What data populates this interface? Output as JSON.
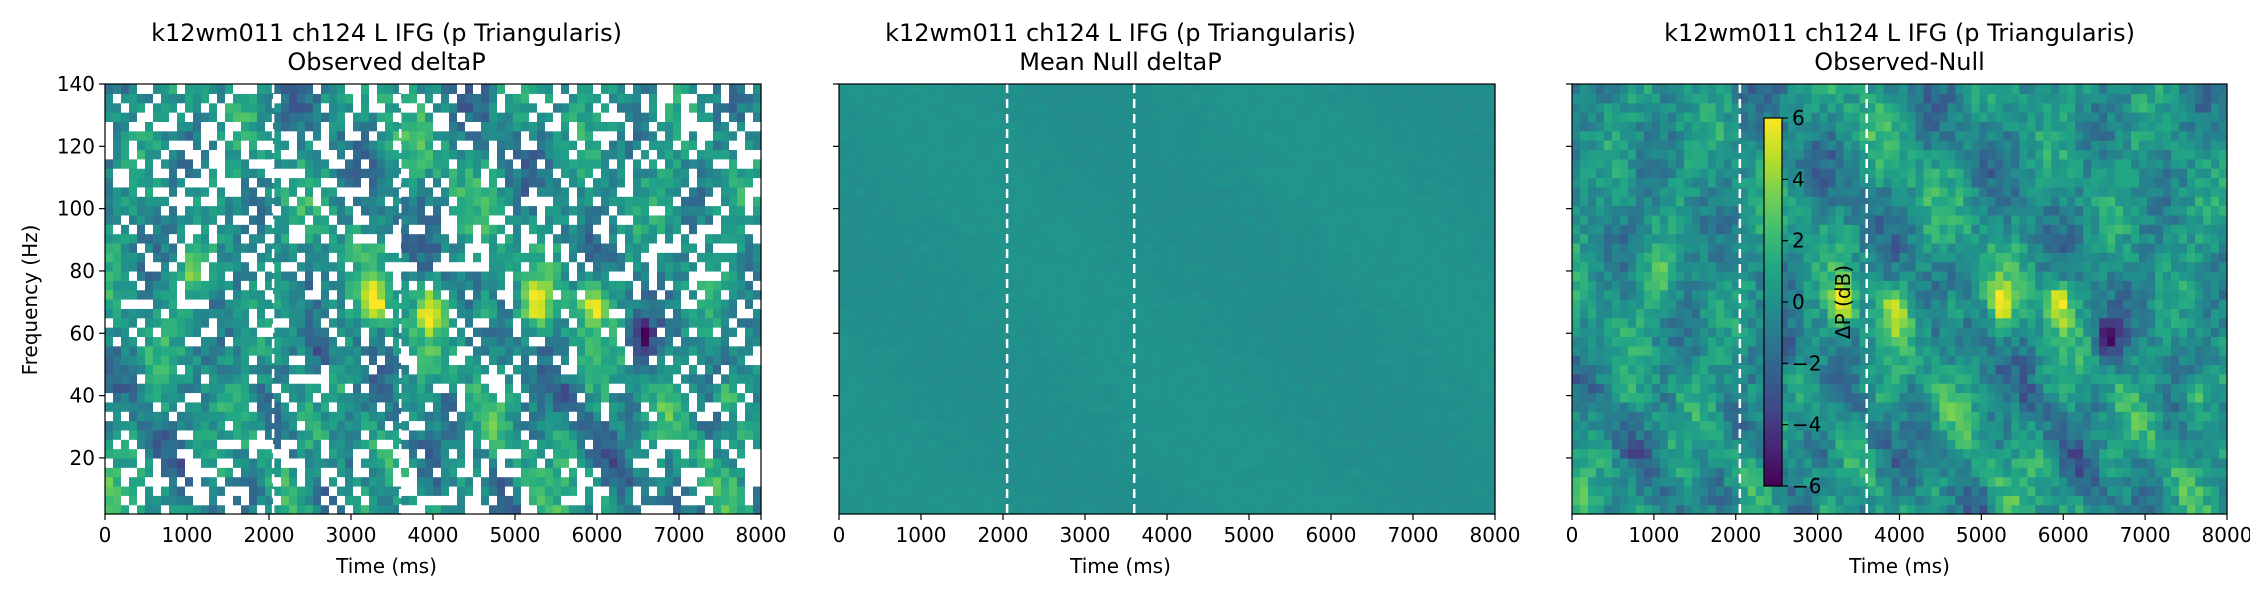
{
  "chart_data": [
    {
      "type": "heatmap",
      "title": [
        "k12wm011 ch124 L IFG (p Triangularis)",
        "Observed deltaP"
      ],
      "xlabel": "Time (ms)",
      "ylabel": "Frequency (Hz)",
      "xlim": [
        0,
        8000
      ],
      "ylim": [
        2,
        140
      ],
      "xticks": [
        0,
        1000,
        2000,
        3000,
        4000,
        5000,
        6000,
        7000,
        8000
      ],
      "yticks": [
        20,
        40,
        60,
        80,
        100,
        120,
        140
      ],
      "ytick_labels_shown": true,
      "event_lines_ms": [
        2050,
        3600
      ],
      "masked": true,
      "pattern": "observed"
    },
    {
      "type": "heatmap",
      "title": [
        "k12wm011 ch124 L IFG (p Triangularis)",
        "Mean Null deltaP"
      ],
      "xlabel": "Time (ms)",
      "ylabel": "",
      "xlim": [
        0,
        8000
      ],
      "ylim": [
        2,
        140
      ],
      "xticks": [
        0,
        1000,
        2000,
        3000,
        4000,
        5000,
        6000,
        7000,
        8000
      ],
      "yticks": [
        20,
        40,
        60,
        80,
        100,
        120,
        140
      ],
      "ytick_labels_shown": false,
      "event_lines_ms": [
        2050,
        3600
      ],
      "masked": false,
      "pattern": "null"
    },
    {
      "type": "heatmap",
      "title": [
        "k12wm011 ch124 L IFG (p Triangularis)",
        "Observed-Null"
      ],
      "xlabel": "Time (ms)",
      "ylabel": "",
      "xlim": [
        0,
        8000
      ],
      "ylim": [
        2,
        140
      ],
      "xticks": [
        0,
        1000,
        2000,
        3000,
        4000,
        5000,
        6000,
        7000,
        8000
      ],
      "yticks": [
        20,
        40,
        60,
        80,
        100,
        120,
        140
      ],
      "ytick_labels_shown": false,
      "event_lines_ms": [
        2050,
        3600
      ],
      "masked": false,
      "pattern": "diff",
      "colorbar": {
        "label": "ΔP (dB)",
        "range": [
          -6,
          6
        ],
        "ticks": [
          -6,
          -4,
          -2,
          0,
          2,
          4,
          6
        ],
        "colormap": "viridis"
      }
    }
  ],
  "hotspots": [
    {
      "t": 3300,
      "f": 70,
      "amp": 5.5
    },
    {
      "t": 3950,
      "f": 68,
      "amp": 5.0
    },
    {
      "t": 4650,
      "f": 68,
      "amp": 3.5
    },
    {
      "t": 5250,
      "f": 70,
      "amp": 5.0
    },
    {
      "t": 5950,
      "f": 70,
      "amp": 5.5
    },
    {
      "t": 1050,
      "f": 78,
      "amp": 3.0
    },
    {
      "t": 6550,
      "f": 58,
      "amp": -4.5
    },
    {
      "t": 2650,
      "f": 55,
      "amp": -3.0
    },
    {
      "t": 7600,
      "f": 40,
      "amp": 3.0
    }
  ]
}
